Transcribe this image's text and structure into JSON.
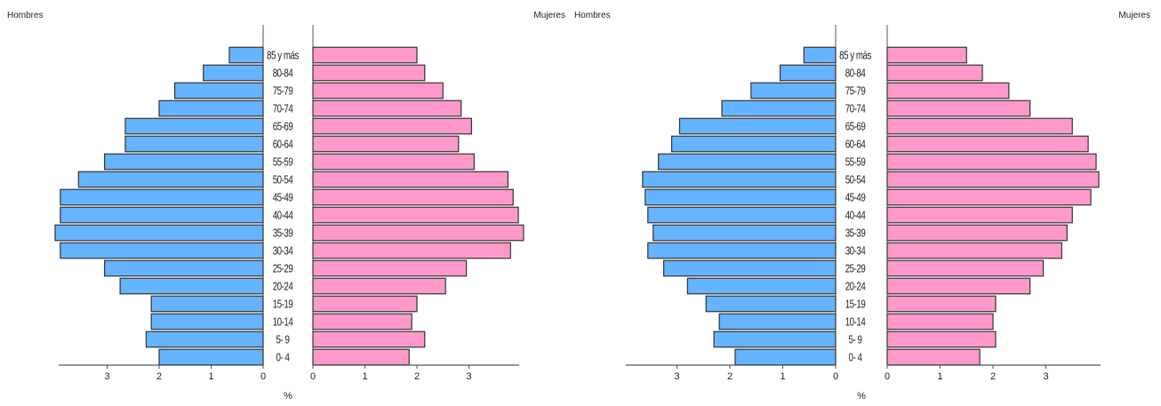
{
  "colors": {
    "male": "#66b3ff",
    "female": "#ff99cc",
    "stroke": "#333333",
    "axis": "#555555",
    "text": "#222222"
  },
  "chart_data": [
    {
      "type": "bar",
      "orientation": "horizontal-butterfly",
      "categories": [
        "0- 4",
        "5- 9",
        "10-14",
        "15-19",
        "20-24",
        "25-29",
        "30-34",
        "35-39",
        "40-44",
        "45-49",
        "50-54",
        "55-59",
        "60-64",
        "65-69",
        "70-74",
        "75-79",
        "80-84",
        "85 y más"
      ],
      "series": [
        {
          "name": "Hombres",
          "side": "left",
          "color": "#66b3ff",
          "values": [
            2.0,
            2.25,
            2.15,
            2.15,
            2.75,
            3.05,
            3.9,
            4.0,
            3.9,
            3.9,
            3.55,
            3.05,
            2.65,
            2.65,
            2.0,
            1.7,
            1.15,
            0.65
          ]
        },
        {
          "name": "Mujeres",
          "side": "right",
          "color": "#ff99cc",
          "values": [
            1.85,
            2.15,
            1.9,
            2.0,
            2.55,
            2.95,
            3.8,
            4.05,
            3.95,
            3.85,
            3.75,
            3.1,
            2.8,
            3.05,
            2.85,
            2.5,
            2.15,
            2.0
          ]
        }
      ],
      "left_label": "Hombres",
      "right_label": "Mujeres",
      "xlabel": "%",
      "left_ticks": [
        3,
        2,
        1,
        0
      ],
      "right_ticks": [
        0,
        1,
        2,
        3
      ],
      "xlim": [
        0,
        4
      ]
    },
    {
      "type": "bar",
      "orientation": "horizontal-butterfly",
      "categories": [
        "0- 4",
        "5- 9",
        "10-14",
        "15-19",
        "20-24",
        "25-29",
        "30-34",
        "35-39",
        "40-44",
        "45-49",
        "50-54",
        "55-59",
        "60-64",
        "65-69",
        "70-74",
        "75-79",
        "80-84",
        "85 y más"
      ],
      "series": [
        {
          "name": "Hombres",
          "side": "left",
          "color": "#66b3ff",
          "values": [
            1.9,
            2.3,
            2.2,
            2.45,
            2.8,
            3.25,
            3.55,
            3.45,
            3.55,
            3.6,
            3.65,
            3.35,
            3.1,
            2.95,
            2.15,
            1.6,
            1.05,
            0.6
          ]
        },
        {
          "name": "Mujeres",
          "side": "right",
          "color": "#ff99cc",
          "values": [
            1.75,
            2.05,
            2.0,
            2.05,
            2.7,
            2.95,
            3.3,
            3.4,
            3.5,
            3.85,
            4.0,
            3.95,
            3.8,
            3.5,
            2.7,
            2.3,
            1.8,
            1.5
          ]
        }
      ],
      "left_label": "Hombres",
      "right_label": "Mujeres",
      "xlabel": "%",
      "left_ticks": [
        3,
        2,
        1,
        0
      ],
      "right_ticks": [
        0,
        1,
        2,
        3
      ],
      "xlim": [
        0,
        4
      ]
    }
  ]
}
